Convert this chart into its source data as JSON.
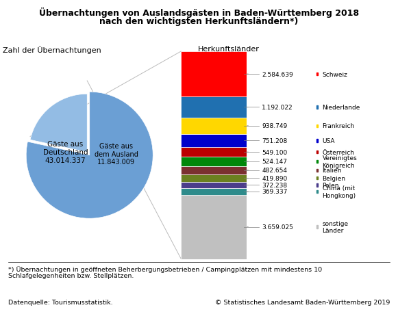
{
  "title_line1": "Übernachtungen von Auslandsgästen in Baden-Württemberg 2018",
  "title_line2": "nach den wichtigsten Herkunftsländern*)",
  "pie_values": [
    43014337,
    11843009
  ],
  "pie_colors": [
    "#6B9FD4",
    "#93BCE4"
  ],
  "pie_label_left": "Zahl der Übernachtungen",
  "pie_label_right": "Herkunftsländer",
  "pie_text_germany": "Gäste aus\nDeutschland\n43.014.337",
  "pie_text_abroad": "Gäste aus\ndem Ausland\n11.843.009",
  "bar_countries": [
    "Schweiz",
    "Niederlande",
    "Frankreich",
    "USA",
    "Österreich",
    "Vereinigtes\nKönigreich",
    "Italien",
    "Belgien",
    "Polen",
    "China (mit\nHongkong)",
    "sonstige\nLänder"
  ],
  "bar_values": [
    2584639,
    1192022,
    938749,
    751208,
    549100,
    524147,
    482654,
    419890,
    372238,
    369337,
    3659025
  ],
  "bar_colors": [
    "#FF0000",
    "#2070B0",
    "#FFD700",
    "#0000CC",
    "#BB0000",
    "#00880A",
    "#7B3030",
    "#6B8020",
    "#4B3D8B",
    "#2E8B8B",
    "#C0C0C0"
  ],
  "bar_labels": [
    "2.584.639",
    "1.192.022",
    "938.749",
    "751.208",
    "549.100",
    "524.147",
    "482.654",
    "419.890",
    "372.238",
    "369.337",
    "3.659.025"
  ],
  "footnote_line1": "*) Übernachtungen in geöffneten Beherbergungsbetrieben / Campingplätzen mit mindestens 10",
  "footnote_line2": "Schlafgelegenheiten bzw. Stellplätzen.",
  "source_left": "Datenquelle: Tourismusstatistik.",
  "source_right": "© Statistisches Landesamt Baden-Württemberg 2019",
  "background_color": "#FFFFFF"
}
